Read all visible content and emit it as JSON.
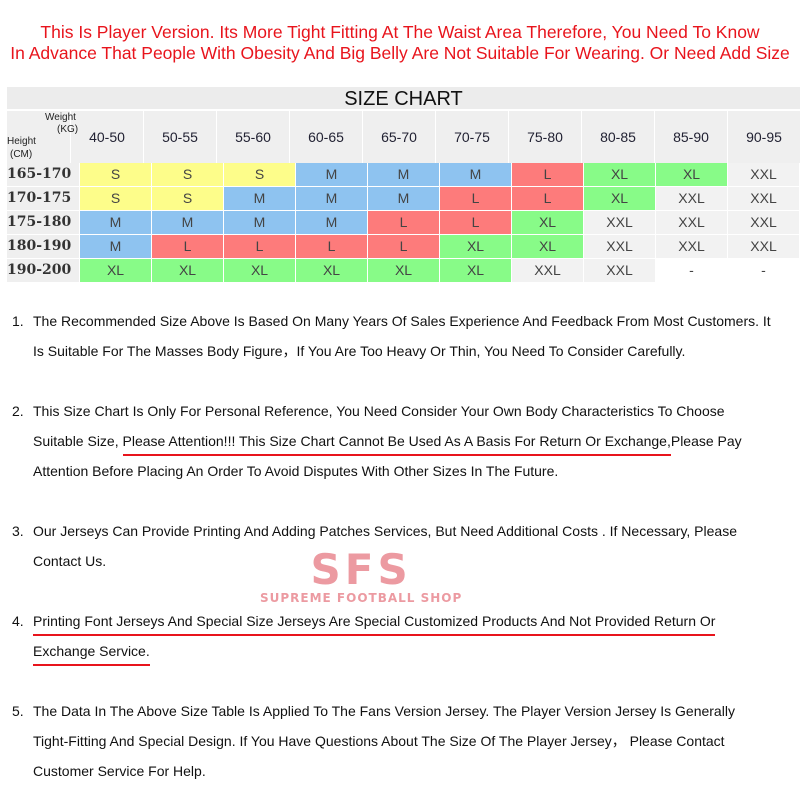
{
  "notice": [
    "This Is Player Version.   Its More Tight Fitting At The Waist Area  Therefore, You Need To Know",
    "In Advance That People With Obesity And Big Belly Are Not Suitable For Wearing. Or Need Add  Size"
  ],
  "table": {
    "title": "SIZE CHART",
    "weight_label": "Weight",
    "weight_unit": "(KG)",
    "height_label": "Height",
    "height_unit": "(CM)",
    "columns": [
      "40-50",
      "50-55",
      "55-60",
      "60-65",
      "65-70",
      "70-75",
      "75-80",
      "80-85",
      "85-90",
      "90-95"
    ],
    "rows": [
      {
        "height": "165-170",
        "sizes": [
          "S",
          "S",
          "S",
          "M",
          "M",
          "M",
          "L",
          "XL",
          "XL",
          "XXL"
        ]
      },
      {
        "height": "170-175",
        "sizes": [
          "S",
          "S",
          "M",
          "M",
          "M",
          "L",
          "L",
          "XL",
          "XXL",
          "XXL"
        ]
      },
      {
        "height": "175-180",
        "sizes": [
          "M",
          "M",
          "M",
          "M",
          "L",
          "L",
          "XL",
          "XXL",
          "XXL",
          "XXL"
        ]
      },
      {
        "height": "180-190",
        "sizes": [
          "M",
          "L",
          "L",
          "L",
          "L",
          "XL",
          "XL",
          "XXL",
          "XXL",
          "XXL"
        ]
      },
      {
        "height": "190-200",
        "sizes": [
          "XL",
          "XL",
          "XL",
          "XL",
          "XL",
          "XL",
          "XXL",
          "XXL",
          "-",
          "-"
        ]
      }
    ],
    "size_colors": {
      "S": "#fdfd8a",
      "M": "#8ec3f0",
      "L": "#fd7b7b",
      "XL": "#88fb88",
      "XXL": "#f2f2f2",
      "-": "#ffffff"
    }
  },
  "notes": [
    {
      "num": "1.",
      "lines": [
        [
          {
            "t": "The Recommended Size Above Is Based On Many Years Of Sales Experience And Feedback From Most Customers. It"
          }
        ],
        [
          {
            "t": "Is Suitable For The Masses Body Figure，If You Are Too Heavy Or Thin, You Need To Consider Carefully."
          }
        ]
      ]
    },
    {
      "num": "2.",
      "lines": [
        [
          {
            "t": "This Size Chart Is Only For Personal Reference, You Need Consider Your Own Body Characteristics To Choose"
          }
        ],
        [
          {
            "t": "Suitable Size, "
          },
          {
            "t": "Please Attention!!! This Size Chart Cannot Be Used As A Basis For Return Or Exchange,",
            "u": true
          },
          {
            "t": "Please Pay"
          }
        ],
        [
          {
            "t": "Attention Before Placing An Order To Avoid Disputes With Other Sizes In The Future."
          }
        ]
      ]
    },
    {
      "num": "3.",
      "lines": [
        [
          {
            "t": "Our Jerseys Can Provide Printing And Adding Patches  Services, But Need Additional Costs . If Necessary, Please"
          }
        ],
        [
          {
            "t": "Contact Us."
          }
        ]
      ]
    },
    {
      "num": "4.",
      "lines": [
        [
          {
            "t": "Printing Font Jerseys And Special Size Jerseys Are Special Customized Products And Not  Provided Return Or ",
            "u": true
          }
        ],
        [
          {
            "t": "Exchange Service.",
            "u": true
          }
        ]
      ]
    },
    {
      "num": "5.",
      "lines": [
        [
          {
            "t": "The Data In The Above Size Table Is Applied To The Fans Version Jersey. The Player Version Jersey Is Generally"
          }
        ],
        [
          {
            "t": "Tight-Fitting And Special Design. If You Have Questions About The Size Of The Player Jersey，  Please Contact"
          }
        ],
        [
          {
            "t": "Customer Service For Help."
          }
        ]
      ]
    }
  ],
  "watermark": {
    "logo": "SFS",
    "tagline": "SUPREME FOOTBALL SHOP"
  }
}
